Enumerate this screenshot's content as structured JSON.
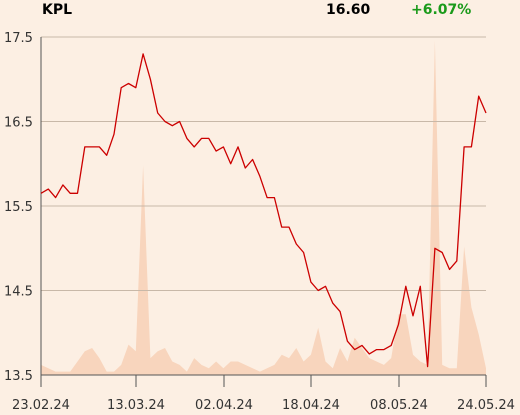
{
  "header": {
    "ticker": "KPL",
    "price": "16.60",
    "change": "+6.07%"
  },
  "colors": {
    "background": "#fcefe3",
    "line": "#cc0000",
    "volume": "#f8d5bd",
    "grid": "#c8b8a8",
    "change_positive": "#1a9a1a"
  },
  "chart_data": {
    "type": "line",
    "title": "",
    "xlabel": "",
    "ylabel": "",
    "ylim": [
      13.5,
      17.5
    ],
    "grid": "horizontal",
    "y_ticks": [
      "17.5",
      "16.5",
      "15.5",
      "14.5",
      "13.5"
    ],
    "x_ticks": [
      "23.02.24",
      "13.03.24",
      "02.04.24",
      "18.04.24",
      "08.05.24",
      "24.05.24"
    ],
    "price": [
      15.65,
      15.7,
      15.6,
      15.75,
      15.65,
      15.65,
      16.2,
      16.2,
      16.2,
      16.1,
      16.35,
      16.9,
      16.95,
      16.9,
      17.3,
      17.0,
      16.6,
      16.5,
      16.45,
      16.5,
      16.3,
      16.2,
      16.3,
      16.3,
      16.15,
      16.2,
      16.0,
      16.2,
      15.95,
      16.05,
      15.85,
      15.6,
      15.6,
      15.25,
      15.25,
      15.05,
      14.95,
      14.6,
      14.5,
      14.55,
      14.35,
      14.25,
      13.9,
      13.8,
      13.85,
      13.75,
      13.8,
      13.8,
      13.85,
      14.1,
      14.55,
      14.2,
      14.55,
      13.6,
      15.0,
      14.95,
      14.75,
      14.85,
      16.2,
      16.2,
      16.8,
      16.6
    ],
    "volume_relative": [
      0.03,
      0.02,
      0.01,
      0.01,
      0.01,
      0.04,
      0.07,
      0.08,
      0.05,
      0.01,
      0.01,
      0.03,
      0.09,
      0.07,
      0.62,
      0.05,
      0.07,
      0.08,
      0.04,
      0.03,
      0.01,
      0.05,
      0.03,
      0.02,
      0.04,
      0.02,
      0.04,
      0.04,
      0.03,
      0.02,
      0.01,
      0.02,
      0.03,
      0.06,
      0.05,
      0.08,
      0.04,
      0.06,
      0.14,
      0.04,
      0.02,
      0.08,
      0.04,
      0.11,
      0.08,
      0.05,
      0.04,
      0.03,
      0.05,
      0.18,
      0.18,
      0.06,
      0.04,
      0.03,
      0.99,
      0.03,
      0.02,
      0.02,
      0.38,
      0.2,
      0.12,
      0.02
    ]
  }
}
